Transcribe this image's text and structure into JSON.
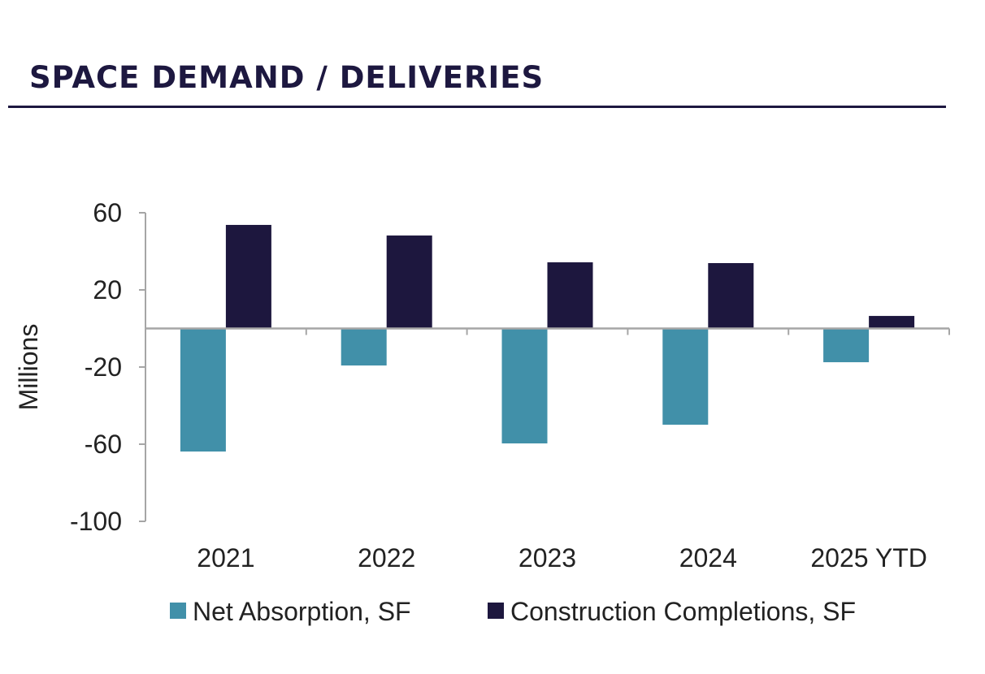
{
  "header": {
    "title": "SPACE DEMAND / DELIVERIES"
  },
  "chart_data": {
    "type": "bar",
    "categories": [
      "2021",
      "2022",
      "2023",
      "2024",
      "2025 YTD"
    ],
    "series": [
      {
        "name": "Net Absorption, SF",
        "color": "#4190a9",
        "values": [
          -63.8,
          -19.2,
          -59.6,
          -49.9,
          -17.5
        ]
      },
      {
        "name": "Construction Completions, SF",
        "color": "#1d173e",
        "values": [
          53.7,
          48.2,
          34.3,
          33.9,
          6.5
        ]
      }
    ],
    "ylabel": "Millions",
    "xlabel": "",
    "ylim": [
      -100,
      60
    ],
    "yticks": [
      "60",
      "20",
      "-20",
      "-60",
      "-100"
    ],
    "grid": false,
    "legend": "bottom"
  }
}
